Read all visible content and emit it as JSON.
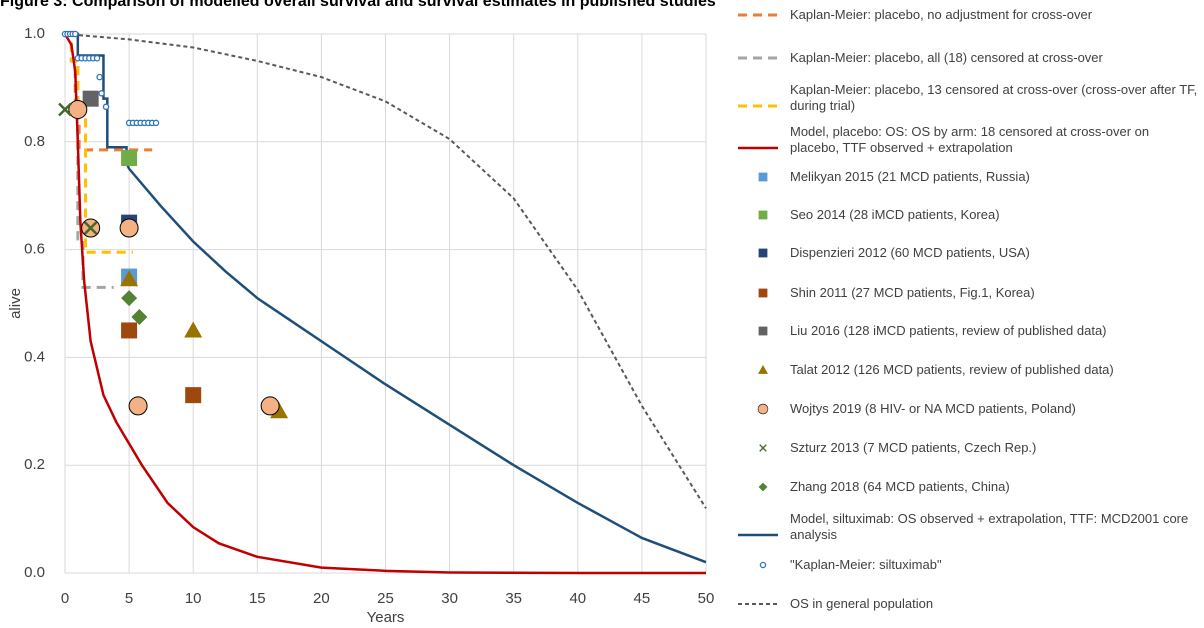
{
  "chart_data": {
    "type": "combo",
    "title": "Figure 3: Comparison of modelled overall survival and survival estimates in published studies",
    "xlabel": "Years",
    "ylabel": "alive",
    "xlim": [
      0,
      50
    ],
    "xticks": [
      0,
      5,
      10,
      15,
      20,
      25,
      30,
      35,
      40,
      45,
      50
    ],
    "ylim": [
      0,
      1
    ],
    "yticks": [
      {
        "value": 0,
        "label": "0.0"
      },
      0.2,
      0.4,
      0.6,
      0.8,
      {
        "value": 1,
        "label": "1.0"
      }
    ],
    "grid": true,
    "legend": "right",
    "series": [
      {
        "name": "Kaplan-Meier: placebo, no adjustment for cross-over",
        "color": "#ED7D31",
        "style": "dashed",
        "x": [
          0,
          0.5,
          0.5,
          0.8,
          0.8,
          1.1,
          1.1,
          6.8
        ],
        "values": [
          1,
          1,
          0.95,
          0.95,
          0.86,
          0.86,
          0.785,
          0.785
        ]
      },
      {
        "name": "Kaplan-Meier: placebo, all (18) censored at cross-over",
        "color": "#A5A5A5",
        "style": "dashed",
        "x": [
          0,
          0.5,
          0.5,
          1,
          1,
          1.4,
          1.4,
          3.8
        ],
        "values": [
          1,
          1,
          0.95,
          0.95,
          0.62,
          0.62,
          0.53,
          0.53
        ]
      },
      {
        "name": "Kaplan-Meier: placebo, 13 censored at cross-over (cross-over after TF, during trial)",
        "color": "#FFC000",
        "style": "dashed",
        "x": [
          0,
          0.5,
          0.5,
          1,
          1,
          1.6,
          1.6,
          5.3
        ],
        "values": [
          1,
          1,
          0.95,
          0.95,
          0.86,
          0.86,
          0.595,
          0.595
        ]
      },
      {
        "name": "Model, placebo: OS: OS by arm: 18 censored at cross-over on placebo, TTF observed + extrapolation",
        "color": "#C00000",
        "style": "solid",
        "x": [
          0,
          0.5,
          0.8,
          1,
          1.2,
          1.5,
          2,
          3,
          4,
          5,
          6,
          8,
          10,
          12,
          15,
          20,
          25,
          30,
          40,
          50
        ],
        "values": [
          1,
          0.98,
          0.93,
          0.8,
          0.65,
          0.54,
          0.43,
          0.33,
          0.28,
          0.24,
          0.2,
          0.13,
          0.085,
          0.055,
          0.03,
          0.01,
          0.004,
          0.001,
          0,
          0
        ]
      },
      {
        "name": "Melikyan 2015 (21 MCD patients, Russia)",
        "color": "#5B9BD5",
        "marker": "square",
        "x": [
          5
        ],
        "values": [
          0.55
        ]
      },
      {
        "name": "Seo 2014 (28 iMCD patients, Korea)",
        "color": "#70AD47",
        "marker": "square",
        "x": [
          5
        ],
        "values": [
          0.77
        ]
      },
      {
        "name": "Dispenzieri 2012 (60 MCD patients, USA)",
        "color": "#264478",
        "marker": "square",
        "x": [
          5
        ],
        "values": [
          0.65
        ]
      },
      {
        "name": "Shin 2011 (27 MCD patients, Fig.1, Korea)",
        "color": "#9E480E",
        "marker": "square",
        "x": [
          5,
          10
        ],
        "values": [
          0.45,
          0.33
        ]
      },
      {
        "name": "Liu 2016 (128 iMCD patients, review of published data)",
        "color": "#636363",
        "marker": "square",
        "x": [
          2
        ],
        "values": [
          0.88
        ]
      },
      {
        "name": "Talat 2012 (126 MCD patients, review of published data)",
        "color": "#997300",
        "marker": "triangle",
        "x": [
          5,
          10,
          16.7
        ],
        "values": [
          0.545,
          0.45,
          0.3
        ]
      },
      {
        "name": "Wojtys 2019 (8 HIV- or NA MCD patients, Poland)",
        "color": "#F4B183",
        "marker": "circle",
        "x": [
          1,
          2,
          5,
          5.7,
          16
        ],
        "values": [
          0.86,
          0.64,
          0.64,
          0.31,
          0.31
        ]
      },
      {
        "name": "Szturz 2013 (7 MCD patients, Czech Rep.)",
        "color": "#43682B",
        "marker": "x",
        "x": [
          0,
          2
        ],
        "values": [
          0.86,
          0.64
        ]
      },
      {
        "name": "Zhang 2018 (64 MCD patients, China)",
        "color": "#548235",
        "marker": "diamond",
        "x": [
          5,
          5.8
        ],
        "values": [
          0.51,
          0.475
        ]
      },
      {
        "name": "Model, siltuximab: OS observed + extrapolation, TTF:  MCD2001 core analysis",
        "color": "#1F4E79",
        "style": "solid",
        "x": [
          0,
          1,
          1,
          3,
          3,
          3.3,
          3.3,
          4.8,
          4.8,
          5,
          7.5,
          10,
          12.5,
          15,
          17.5,
          20,
          25,
          30,
          35,
          40,
          45,
          50
        ],
        "values": [
          1,
          1,
          0.96,
          0.96,
          0.88,
          0.88,
          0.79,
          0.79,
          0.76,
          0.75,
          0.68,
          0.615,
          0.56,
          0.51,
          0.47,
          0.43,
          0.35,
          0.275,
          0.2,
          0.13,
          0.065,
          0.02
        ]
      },
      {
        "name": "\"Kaplan-Meier: siltuximab\"",
        "color": "#2E75B6",
        "marker": "open-circle",
        "x": [
          0,
          0.2,
          0.4,
          0.6,
          0.8,
          1,
          1.3,
          1.6,
          1.9,
          2.2,
          2.5,
          2.7,
          2.85,
          3.2,
          5,
          5.3,
          5.6,
          5.9,
          6.2,
          6.5,
          6.8,
          7.1
        ],
        "values": [
          1,
          1,
          1,
          1,
          1,
          0.955,
          0.955,
          0.955,
          0.955,
          0.955,
          0.955,
          0.92,
          0.89,
          0.865,
          0.835,
          0.835,
          0.835,
          0.835,
          0.835,
          0.835,
          0.835,
          0.835
        ]
      },
      {
        "name": "OS in general population",
        "color": "#595959",
        "style": "dotted",
        "x": [
          0,
          5,
          10,
          15,
          20,
          25,
          30,
          35,
          40,
          45,
          50
        ],
        "values": [
          1,
          0.99,
          0.975,
          0.95,
          0.92,
          0.875,
          0.805,
          0.695,
          0.525,
          0.31,
          0.12
        ]
      }
    ]
  }
}
